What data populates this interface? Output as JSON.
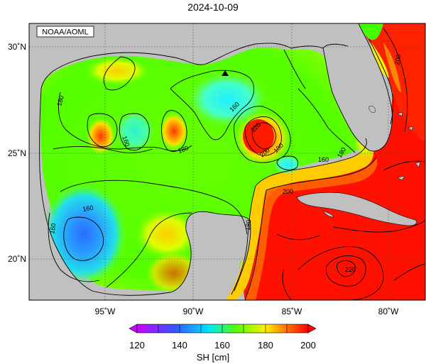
{
  "title": "2024-10-09",
  "credit": "NOAA/AOML",
  "lat_labels": [
    "30˚N",
    "25˚N",
    "20˚N"
  ],
  "lon_labels": [
    "95˚W",
    "90˚W",
    "85˚W",
    "80˚W"
  ],
  "colorbar": {
    "label": "SH [cm]",
    "ticks": [
      "120",
      "140",
      "160",
      "180",
      "200"
    ],
    "min": 120,
    "max": 200,
    "colors": [
      "#cc00ff",
      "#3355ff",
      "#00e0ff",
      "#44ff00",
      "#ffee00",
      "#ff6600",
      "#ff0000"
    ]
  },
  "contour_labels": {
    "a": "180",
    "b": "160",
    "c": "180",
    "d": "160",
    "e": "180",
    "f": "220",
    "g": "200",
    "h": "180",
    "i": "160",
    "j": "160",
    "k": "200",
    "l": "200",
    "m": "220",
    "n": "160",
    "o": "180"
  },
  "colors": {
    "land": "#c0c0c0",
    "ocean_bg": "#ff0000",
    "grid": "#555555"
  },
  "marker": "station-triangle"
}
